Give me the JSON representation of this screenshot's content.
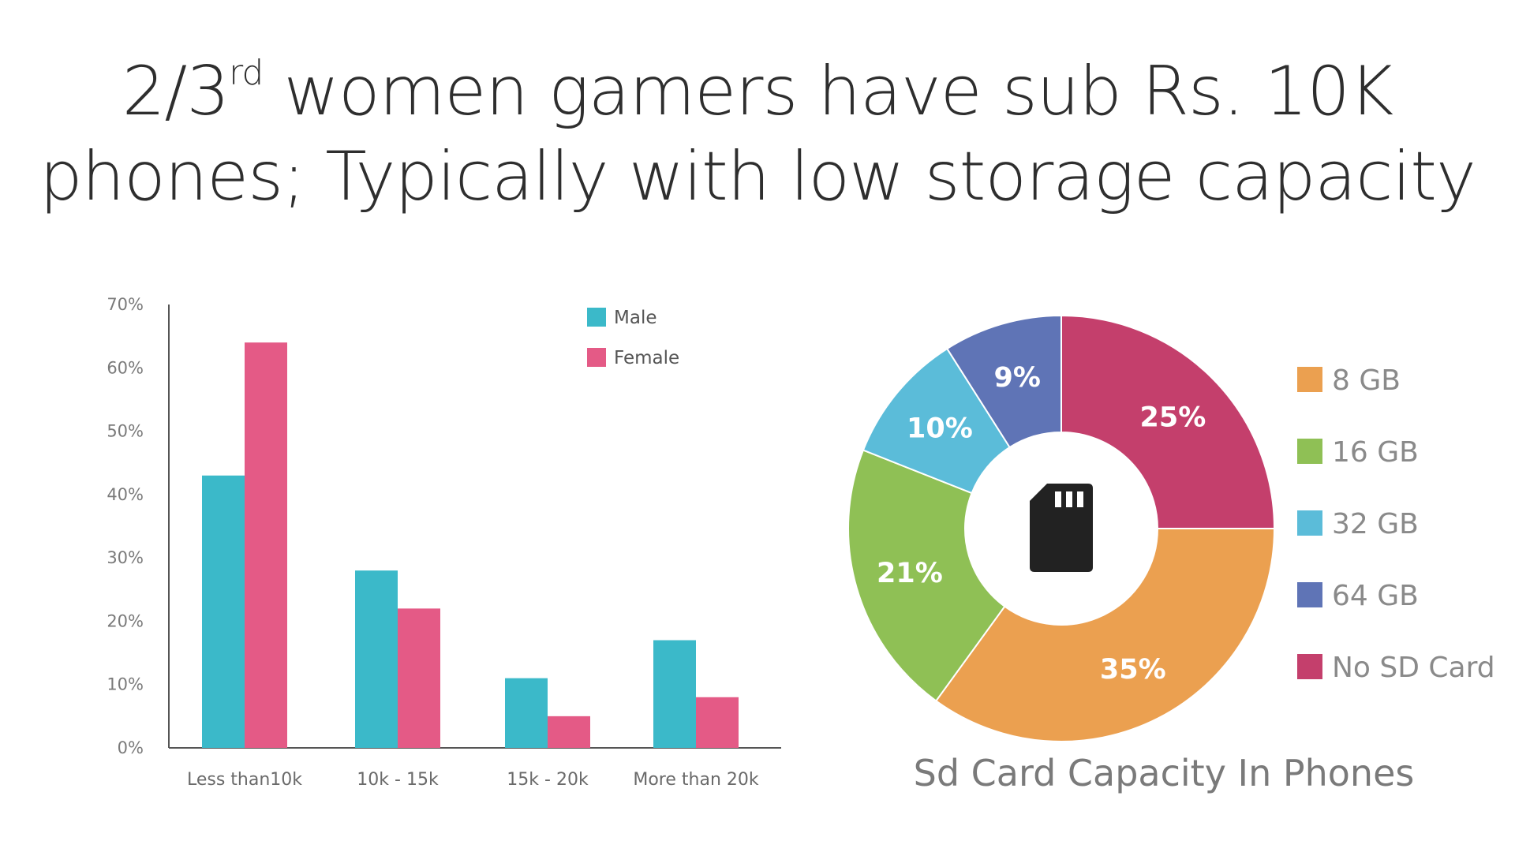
{
  "headline": {
    "line1_pre": "2/3",
    "line1_sup": "rd",
    "line1_post": " women gamers have sub Rs. 10K",
    "line2": "phones; Typically with low storage capacity"
  },
  "chart_data": [
    {
      "type": "bar",
      "title": "",
      "categories": [
        "Less than10k",
        "10k - 15k",
        "15k - 20k",
        "More than 20k"
      ],
      "series": [
        {
          "name": "Male",
          "color": "#3bb9c9",
          "values": [
            43,
            28,
            11,
            17
          ]
        },
        {
          "name": "Female",
          "color": "#e45a86",
          "values": [
            64,
            22,
            5,
            8
          ]
        }
      ],
      "ylim": [
        0,
        70
      ],
      "yticks": [
        "0%",
        "10%",
        "20%",
        "30%",
        "40%",
        "50%",
        "60%",
        "70%"
      ],
      "grid": false,
      "legend": "top-right"
    },
    {
      "type": "pie",
      "title": "Sd Card Capacity In Phones",
      "slices": [
        {
          "label": "No SD Card",
          "value": 25,
          "text": "25%",
          "color": "#c43f6c"
        },
        {
          "label": "8 GB",
          "value": 35,
          "text": "35%",
          "color": "#eba050"
        },
        {
          "label": "16 GB",
          "value": 21,
          "text": "21%",
          "color": "#8fc055"
        },
        {
          "label": "32 GB",
          "value": 10,
          "text": "10%",
          "color": "#5bbcd9"
        },
        {
          "label": "64 GB",
          "value": 9,
          "text": "9%",
          "color": "#5f74b6"
        }
      ],
      "legend_order": [
        "8 GB",
        "16 GB",
        "32 GB",
        "64 GB",
        "No SD Card"
      ],
      "center_icon": "sd-card-icon",
      "donut": true,
      "legend": "right"
    }
  ]
}
